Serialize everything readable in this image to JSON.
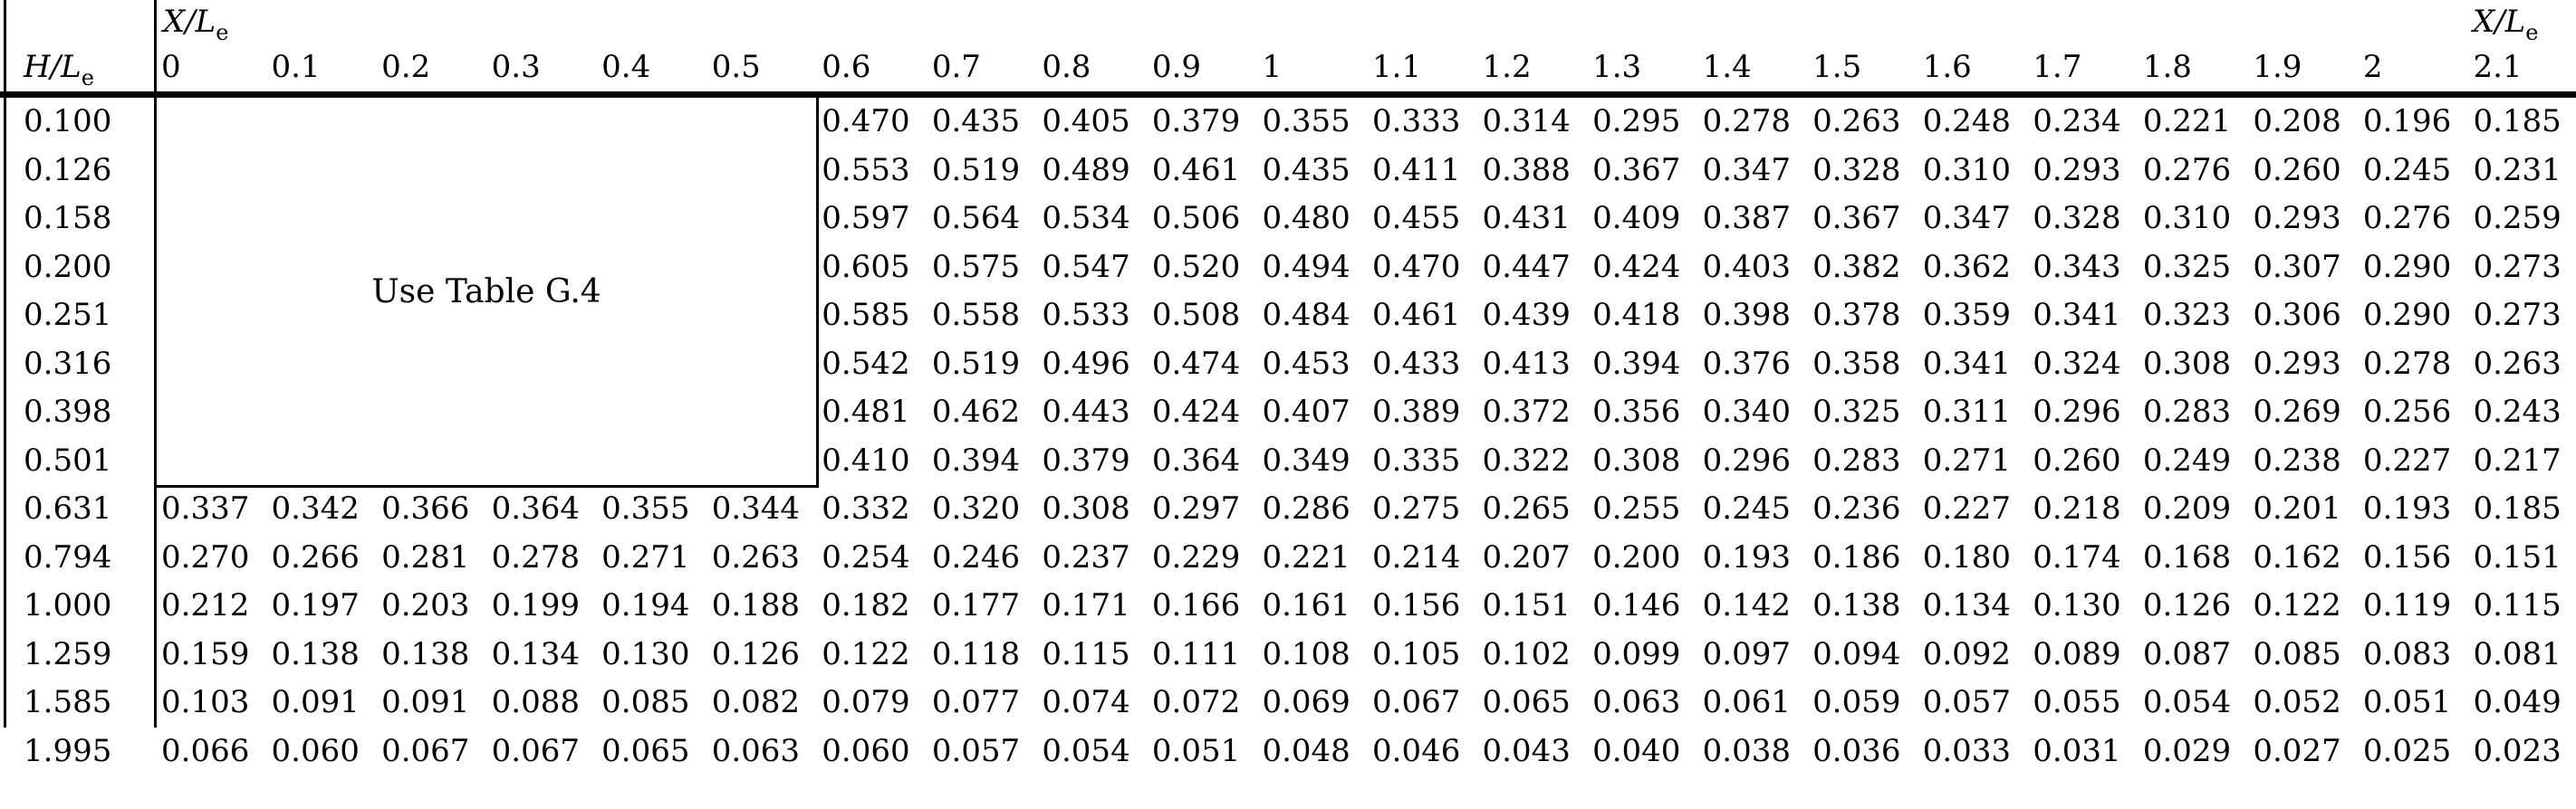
{
  "header": {
    "row_axis": {
      "main": "H/L",
      "sub": "e"
    },
    "col_axis_left": {
      "main": "X/L",
      "sub": "e"
    },
    "col_axis_right": {
      "main": "X/L",
      "sub": "e"
    },
    "columns": [
      "0",
      "0.1",
      "0.2",
      "0.3",
      "0.4",
      "0.5",
      "0.6",
      "0.7",
      "0.8",
      "0.9",
      "1",
      "1.1",
      "1.2",
      "1.3",
      "1.4",
      "1.5",
      "1.6",
      "1.7",
      "1.8",
      "1.9",
      "2",
      "2.1"
    ]
  },
  "note_box": {
    "text": "Use Table G.4"
  },
  "colors": {
    "text": "#000000",
    "background": "#ffffff",
    "rule": "#000000"
  },
  "table": {
    "rows": [
      {
        "label": "0.100",
        "values": [
          null,
          null,
          null,
          null,
          null,
          null,
          "0.470",
          "0.435",
          "0.405",
          "0.379",
          "0.355",
          "0.333",
          "0.314",
          "0.295",
          "0.278",
          "0.263",
          "0.248",
          "0.234",
          "0.221",
          "0.208",
          "0.196",
          "0.185"
        ]
      },
      {
        "label": "0.126",
        "values": [
          null,
          null,
          null,
          null,
          null,
          null,
          "0.553",
          "0.519",
          "0.489",
          "0.461",
          "0.435",
          "0.411",
          "0.388",
          "0.367",
          "0.347",
          "0.328",
          "0.310",
          "0.293",
          "0.276",
          "0.260",
          "0.245",
          "0.231"
        ]
      },
      {
        "label": "0.158",
        "values": [
          null,
          null,
          null,
          null,
          null,
          null,
          "0.597",
          "0.564",
          "0.534",
          "0.506",
          "0.480",
          "0.455",
          "0.431",
          "0.409",
          "0.387",
          "0.367",
          "0.347",
          "0.328",
          "0.310",
          "0.293",
          "0.276",
          "0.259"
        ]
      },
      {
        "label": "0.200",
        "values": [
          null,
          null,
          null,
          null,
          null,
          null,
          "0.605",
          "0.575",
          "0.547",
          "0.520",
          "0.494",
          "0.470",
          "0.447",
          "0.424",
          "0.403",
          "0.382",
          "0.362",
          "0.343",
          "0.325",
          "0.307",
          "0.290",
          "0.273"
        ]
      },
      {
        "label": "0.251",
        "values": [
          null,
          null,
          null,
          null,
          null,
          null,
          "0.585",
          "0.558",
          "0.533",
          "0.508",
          "0.484",
          "0.461",
          "0.439",
          "0.418",
          "0.398",
          "0.378",
          "0.359",
          "0.341",
          "0.323",
          "0.306",
          "0.290",
          "0.273"
        ]
      },
      {
        "label": "0.316",
        "values": [
          null,
          null,
          null,
          null,
          null,
          null,
          "0.542",
          "0.519",
          "0.496",
          "0.474",
          "0.453",
          "0.433",
          "0.413",
          "0.394",
          "0.376",
          "0.358",
          "0.341",
          "0.324",
          "0.308",
          "0.293",
          "0.278",
          "0.263"
        ]
      },
      {
        "label": "0.398",
        "values": [
          null,
          null,
          null,
          null,
          null,
          null,
          "0.481",
          "0.462",
          "0.443",
          "0.424",
          "0.407",
          "0.389",
          "0.372",
          "0.356",
          "0.340",
          "0.325",
          "0.311",
          "0.296",
          "0.283",
          "0.269",
          "0.256",
          "0.243"
        ]
      },
      {
        "label": "0.501",
        "values": [
          null,
          null,
          null,
          null,
          null,
          null,
          "0.410",
          "0.394",
          "0.379",
          "0.364",
          "0.349",
          "0.335",
          "0.322",
          "0.308",
          "0.296",
          "0.283",
          "0.271",
          "0.260",
          "0.249",
          "0.238",
          "0.227",
          "0.217"
        ]
      },
      {
        "label": "0.631",
        "values": [
          "0.337",
          "0.342",
          "0.366",
          "0.364",
          "0.355",
          "0.344",
          "0.332",
          "0.320",
          "0.308",
          "0.297",
          "0.286",
          "0.275",
          "0.265",
          "0.255",
          "0.245",
          "0.236",
          "0.227",
          "0.218",
          "0.209",
          "0.201",
          "0.193",
          "0.185"
        ]
      },
      {
        "label": "0.794",
        "values": [
          "0.270",
          "0.266",
          "0.281",
          "0.278",
          "0.271",
          "0.263",
          "0.254",
          "0.246",
          "0.237",
          "0.229",
          "0.221",
          "0.214",
          "0.207",
          "0.200",
          "0.193",
          "0.186",
          "0.180",
          "0.174",
          "0.168",
          "0.162",
          "0.156",
          "0.151"
        ]
      },
      {
        "label": "1.000",
        "values": [
          "0.212",
          "0.197",
          "0.203",
          "0.199",
          "0.194",
          "0.188",
          "0.182",
          "0.177",
          "0.171",
          "0.166",
          "0.161",
          "0.156",
          "0.151",
          "0.146",
          "0.142",
          "0.138",
          "0.134",
          "0.130",
          "0.126",
          "0.122",
          "0.119",
          "0.115"
        ]
      },
      {
        "label": "1.259",
        "values": [
          "0.159",
          "0.138",
          "0.138",
          "0.134",
          "0.130",
          "0.126",
          "0.122",
          "0.118",
          "0.115",
          "0.111",
          "0.108",
          "0.105",
          "0.102",
          "0.099",
          "0.097",
          "0.094",
          "0.092",
          "0.089",
          "0.087",
          "0.085",
          "0.083",
          "0.081"
        ]
      },
      {
        "label": "1.585",
        "values": [
          "0.103",
          "0.091",
          "0.091",
          "0.088",
          "0.085",
          "0.082",
          "0.079",
          "0.077",
          "0.074",
          "0.072",
          "0.069",
          "0.067",
          "0.065",
          "0.063",
          "0.061",
          "0.059",
          "0.057",
          "0.055",
          "0.054",
          "0.052",
          "0.051",
          "0.049"
        ]
      },
      {
        "label": "1.995",
        "values": [
          "0.066",
          "0.060",
          "0.067",
          "0.067",
          "0.065",
          "0.063",
          "0.060",
          "0.057",
          "0.054",
          "0.051",
          "0.048",
          "0.046",
          "0.043",
          "0.040",
          "0.038",
          "0.036",
          "0.033",
          "0.031",
          "0.029",
          "0.027",
          "0.025",
          "0.023"
        ]
      }
    ]
  }
}
